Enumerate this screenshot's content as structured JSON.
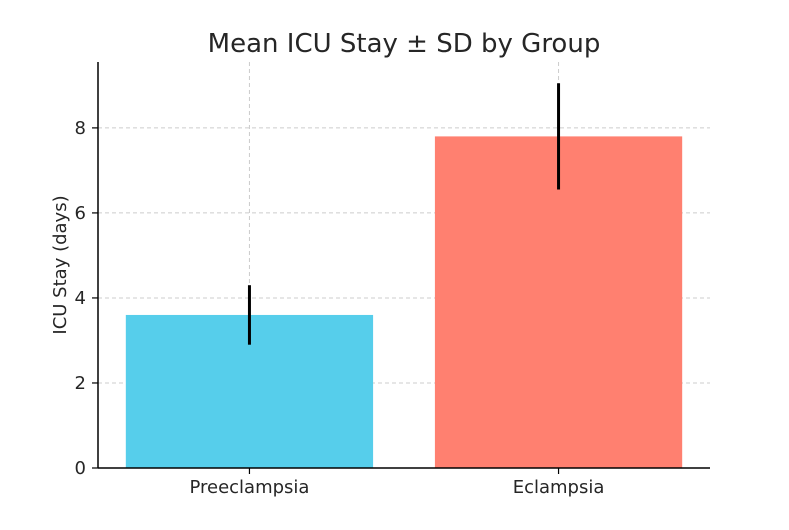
{
  "chart_data": {
    "type": "bar",
    "title": "Mean ICU Stay ± SD by Group",
    "xlabel": "",
    "ylabel": "ICU Stay (days)",
    "categories": [
      "Preeclampsia",
      "Eclampsia"
    ],
    "values": [
      3.6,
      7.8
    ],
    "errors": [
      0.7,
      1.25
    ],
    "colors": [
      "#56CEEB",
      "#FF8070"
    ],
    "ylim": [
      0,
      9.55
    ],
    "yticks": [
      0,
      2,
      4,
      6,
      8
    ],
    "grid": true,
    "legend": "none"
  }
}
